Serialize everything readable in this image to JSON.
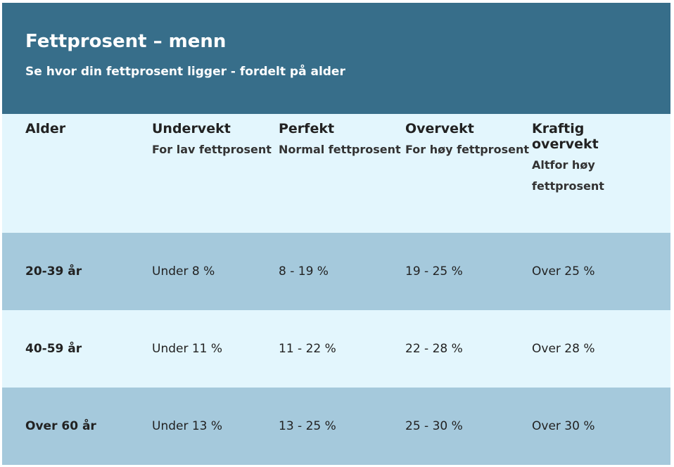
{
  "header": {
    "title": "Fettprosent – menn",
    "subtitle": "Se hvor din fettprosent ligger - fordelt på alder"
  },
  "table": {
    "columns": [
      {
        "title": "Alder"
      },
      {
        "title": "Undervekt",
        "subtitle": "For lav fettprosent"
      },
      {
        "title": "Perfekt",
        "subtitle": "Normal fettprosent"
      },
      {
        "title": "Overvekt",
        "subtitle": "For høy fettprosent"
      },
      {
        "title": "Kraftig overvekt",
        "subtitle": "Altfor høy fettprosent"
      }
    ],
    "rows": [
      [
        "20-39 år",
        "Under 8 %",
        "8 - 19 %",
        "19 - 25 %",
        "Over 25 %"
      ],
      [
        "40-59 år",
        "Under 11 %",
        "11 - 22 %",
        "22 - 28 %",
        "Over 28 %"
      ],
      [
        "Over 60 år",
        "Under 13 %",
        "13 - 25 %",
        "25 - 30 %",
        "Over 30 %"
      ]
    ]
  }
}
